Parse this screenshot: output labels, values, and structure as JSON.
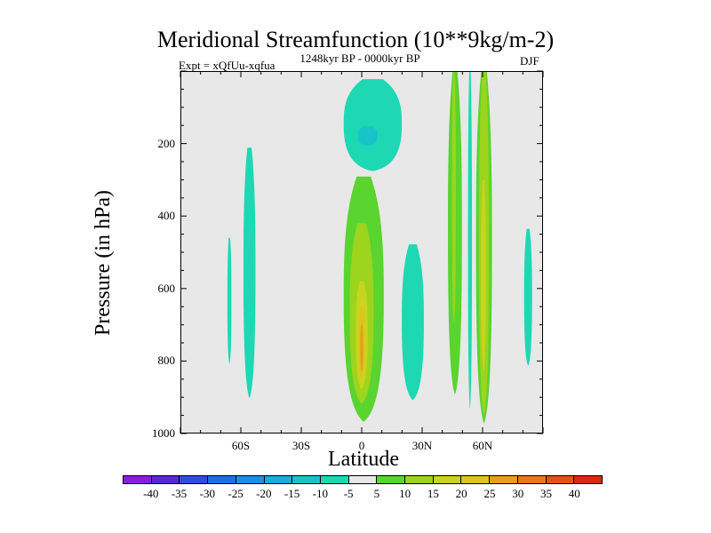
{
  "chart_data": {
    "type": "heatmap",
    "title": "Meridional Streamfunction (10**9kg/m-2)",
    "subtitle_left": "Expt = xQfUu-xqfua",
    "subtitle_center": "1248kyr BP - 0000kyr BP",
    "subtitle_right": "DJF",
    "xlabel": "Latitude",
    "ylabel": "Pressure (in hPa)",
    "xlim": [
      -90,
      90
    ],
    "ylim": [
      1000,
      0
    ],
    "x_ticks": [
      {
        "value": -60,
        "label": "60S"
      },
      {
        "value": -30,
        "label": "30S"
      },
      {
        "value": 0,
        "label": "0"
      },
      {
        "value": 30,
        "label": "30N"
      },
      {
        "value": 60,
        "label": "60N"
      }
    ],
    "y_ticks": [
      {
        "value": 200,
        "label": "200"
      },
      {
        "value": 400,
        "label": "400"
      },
      {
        "value": 600,
        "label": "600"
      },
      {
        "value": 800,
        "label": "800"
      },
      {
        "value": 1000,
        "label": "1000"
      }
    ],
    "contour_levels": [
      "-40",
      "-35",
      "-30",
      "-25",
      "-20",
      "-15",
      "-10",
      "-5",
      "5",
      "10",
      "15",
      "20",
      "25",
      "30",
      "35",
      "40"
    ],
    "colorbar_colors": [
      "#8a1ee0",
      "#5a28d8",
      "#2d4ee0",
      "#1f6ee6",
      "#1c8fe6",
      "#18acd8",
      "#18c4c8",
      "#1ed8b4",
      "#e8e8e8",
      "#5ad42e",
      "#9cd41e",
      "#c8d41e",
      "#e0c21c",
      "#e6a01c",
      "#e67a1c",
      "#e6501a",
      "#d8281a"
    ],
    "regions": [
      {
        "lat_min": -67,
        "lat_max": -65,
        "p_top": 460,
        "p_bottom": 810,
        "level": -5
      },
      {
        "lat_min": -59,
        "lat_max": -53,
        "p_top": 210,
        "p_bottom": 905,
        "level": -5
      },
      {
        "lat_min": -9,
        "lat_max": 20,
        "p_top": 20,
        "p_bottom": 275,
        "level": -5
      },
      {
        "lat_min": -2,
        "lat_max": 8,
        "p_top": 150,
        "p_bottom": 205,
        "level": -10
      },
      {
        "lat_min": 20,
        "lat_max": 31,
        "p_top": 478,
        "p_bottom": 910,
        "level": -5
      },
      {
        "lat_min": 53,
        "lat_max": 55,
        "p_top": 0,
        "p_bottom": 935,
        "level": -5
      },
      {
        "lat_min": 81,
        "lat_max": 85,
        "p_top": 435,
        "p_bottom": 815,
        "level": -5
      },
      {
        "lat_min": -9,
        "lat_max": 11,
        "p_top": 290,
        "p_bottom": 970,
        "level": 5
      },
      {
        "lat_min": -6,
        "lat_max": 6,
        "p_top": 420,
        "p_bottom": 920,
        "level": 10
      },
      {
        "lat_min": -3,
        "lat_max": 3,
        "p_top": 580,
        "p_bottom": 880,
        "level": 15
      },
      {
        "lat_min": -1.5,
        "lat_max": 1.5,
        "p_top": 650,
        "p_bottom": 850,
        "level": 20
      },
      {
        "lat_min": -0.8,
        "lat_max": 0.8,
        "p_top": 700,
        "p_bottom": 830,
        "level": 25
      },
      {
        "lat_min": 43,
        "lat_max": 50,
        "p_top": 0,
        "p_bottom": 895,
        "level": 5
      },
      {
        "lat_min": 45,
        "lat_max": 47,
        "p_top": 0,
        "p_bottom": 700,
        "level": 10
      },
      {
        "lat_min": 57,
        "lat_max": 65,
        "p_top": 0,
        "p_bottom": 975,
        "level": 5
      },
      {
        "lat_min": 58.5,
        "lat_max": 63.5,
        "p_top": 0,
        "p_bottom": 955,
        "level": 10
      },
      {
        "lat_min": 59.5,
        "lat_max": 62,
        "p_top": 300,
        "p_bottom": 830,
        "level": 15
      }
    ]
  }
}
